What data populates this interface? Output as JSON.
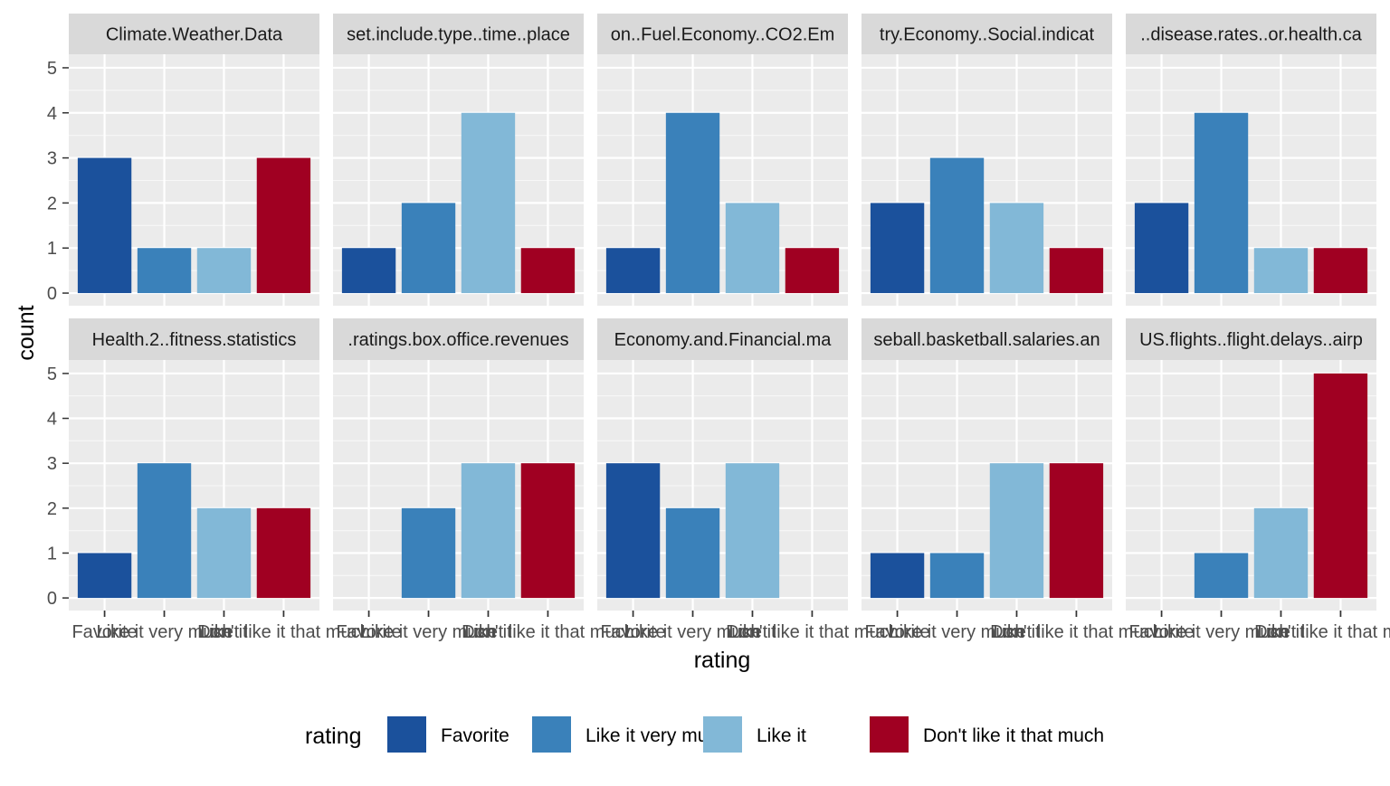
{
  "chart_data": {
    "type": "bar",
    "xlabel": "rating",
    "ylabel": "count",
    "ylim": [
      0,
      5.3
    ],
    "yticks": [
      0,
      1,
      2,
      3,
      4,
      5
    ],
    "grid": true,
    "legend": {
      "title": "rating",
      "position": "bottom",
      "entries": [
        "Favorite",
        "Like it very much",
        "Like it",
        "Don't like it that much"
      ]
    },
    "categories": [
      "Favorite",
      "Like it very much",
      "Like it",
      "Don't like it that much"
    ],
    "colors": [
      "#1B519C",
      "#3A81BA",
      "#82B8D7",
      "#A00022"
    ],
    "facets": [
      {
        "label": "Climate.Weather.Data",
        "values": [
          3,
          1,
          1,
          3
        ]
      },
      {
        "label": "set.include.type..time..place",
        "values": [
          1,
          2,
          4,
          1
        ]
      },
      {
        "label": "on..Fuel.Economy..CO2.Em",
        "values": [
          1,
          4,
          2,
          1
        ]
      },
      {
        "label": "try.Economy..Social.indicat",
        "values": [
          2,
          3,
          2,
          1
        ]
      },
      {
        "label": "..disease.rates..or.health.ca",
        "values": [
          2,
          4,
          1,
          1
        ]
      },
      {
        "label": "Health.2..fitness.statistics",
        "values": [
          1,
          3,
          2,
          2
        ]
      },
      {
        "label": ".ratings.box.office.revenues",
        "values": [
          0,
          2,
          3,
          3
        ]
      },
      {
        "label": "Economy.and.Financial.ma",
        "values": [
          3,
          2,
          3,
          0
        ]
      },
      {
        "label": "seball.basketball.salaries.an",
        "values": [
          1,
          1,
          3,
          3
        ]
      },
      {
        "label": "US.flights..flight.delays..airp",
        "values": [
          0,
          1,
          2,
          5
        ]
      }
    ]
  }
}
